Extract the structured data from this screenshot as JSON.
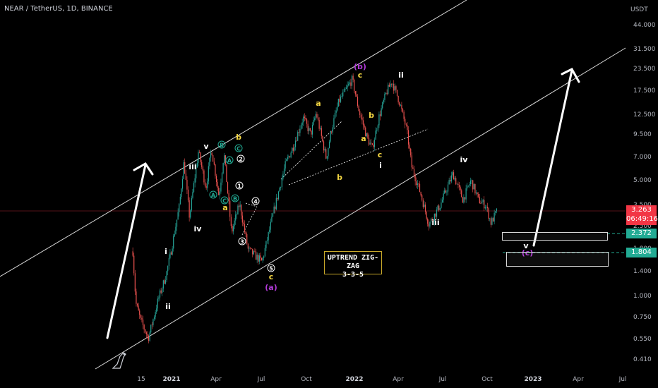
{
  "header": {
    "title": "NEAR / TetherUS, 1D, BINANCE"
  },
  "price_axis": {
    "currency": "USDT",
    "ticks": [
      "44.000",
      "31.500",
      "23.500",
      "17.500",
      "12.500",
      "9.500",
      "7.000",
      "5.000",
      "3.500",
      "2.500",
      "1.800",
      "1.400",
      "1.000",
      "0.750",
      "0.550",
      "0.410"
    ]
  },
  "time_axis": {
    "ticks": [
      "15",
      "2021",
      "Apr",
      "Jul",
      "Oct",
      "2022",
      "Apr",
      "Jul",
      "Oct",
      "2023",
      "Apr",
      "Jul"
    ]
  },
  "price_tags": {
    "current": {
      "price": "3.263",
      "countdown": "06:49:16",
      "color": "#f23645"
    },
    "target_1": {
      "price": "2.372",
      "color": "#22ab94"
    },
    "target_2": {
      "price": "1.804",
      "color": "#22ab94"
    }
  },
  "annotation": {
    "line1": "UPTREND ZIG-ZAG",
    "line2": "3-3-5"
  },
  "wave_labels": [
    "i",
    "ii",
    "iii",
    "iv",
    "v",
    "a",
    "b",
    "c",
    "A",
    "B",
    "C",
    "(a)",
    "(b)",
    "(c)",
    "1",
    "2",
    "3",
    "4",
    "5"
  ],
  "chart_data": {
    "type": "candlestick",
    "symbol": "NEAR/USDT",
    "interval": "1D",
    "y_scale": "log",
    "y_range": [
      0.41,
      44.0
    ],
    "x_range": [
      "2020-11",
      "2023-07"
    ],
    "series": [
      {
        "x": "2020-11-04",
        "y": 1.85
      },
      {
        "x": "2020-11-10",
        "y": 0.9
      },
      {
        "x": "2020-11-20",
        "y": 0.7
      },
      {
        "x": "2020-12-05",
        "y": 0.55
      },
      {
        "x": "2020-12-25",
        "y": 0.95
      },
      {
        "x": "2021-01-10",
        "y": 1.35
      },
      {
        "x": "2021-01-20",
        "y": 1.9
      },
      {
        "x": "2021-02-05",
        "y": 3.5
      },
      {
        "x": "2021-02-14",
        "y": 6.5
      },
      {
        "x": "2021-02-25",
        "y": 3.0
      },
      {
        "x": "2021-03-15",
        "y": 7.5
      },
      {
        "x": "2021-03-30",
        "y": 4.5
      },
      {
        "x": "2021-04-10",
        "y": 7.8
      },
      {
        "x": "2021-04-25",
        "y": 4.0
      },
      {
        "x": "2021-05-05",
        "y": 7.3
      },
      {
        "x": "2021-05-20",
        "y": 2.4
      },
      {
        "x": "2021-06-05",
        "y": 3.6
      },
      {
        "x": "2021-06-22",
        "y": 1.9
      },
      {
        "x": "2021-07-20",
        "y": 1.6
      },
      {
        "x": "2021-08-15",
        "y": 3.5
      },
      {
        "x": "2021-09-05",
        "y": 6.3
      },
      {
        "x": "2021-09-20",
        "y": 8.0
      },
      {
        "x": "2021-10-10",
        "y": 12.0
      },
      {
        "x": "2021-10-25",
        "y": 9.5
      },
      {
        "x": "2021-11-05",
        "y": 12.8
      },
      {
        "x": "2021-11-25",
        "y": 6.8
      },
      {
        "x": "2021-12-05",
        "y": 10.0
      },
      {
        "x": "2021-12-20",
        "y": 15.0
      },
      {
        "x": "2022-01-16",
        "y": 20.5
      },
      {
        "x": "2022-01-30",
        "y": 13.0
      },
      {
        "x": "2022-02-15",
        "y": 9.0
      },
      {
        "x": "2022-02-25",
        "y": 7.8
      },
      {
        "x": "2022-03-10",
        "y": 12.0
      },
      {
        "x": "2022-03-25",
        "y": 17.0
      },
      {
        "x": "2022-04-05",
        "y": 20.0
      },
      {
        "x": "2022-04-20",
        "y": 15.0
      },
      {
        "x": "2022-05-05",
        "y": 10.0
      },
      {
        "x": "2022-05-15",
        "y": 6.0
      },
      {
        "x": "2022-06-01",
        "y": 4.2
      },
      {
        "x": "2022-06-18",
        "y": 2.7
      },
      {
        "x": "2022-07-10",
        "y": 3.5
      },
      {
        "x": "2022-08-05",
        "y": 5.5
      },
      {
        "x": "2022-08-25",
        "y": 3.8
      },
      {
        "x": "2022-09-10",
        "y": 5.0
      },
      {
        "x": "2022-09-25",
        "y": 3.8
      },
      {
        "x": "2022-10-10",
        "y": 3.5
      },
      {
        "x": "2022-10-20",
        "y": 2.75
      },
      {
        "x": "2022-11-01",
        "y": 3.26
      }
    ]
  }
}
